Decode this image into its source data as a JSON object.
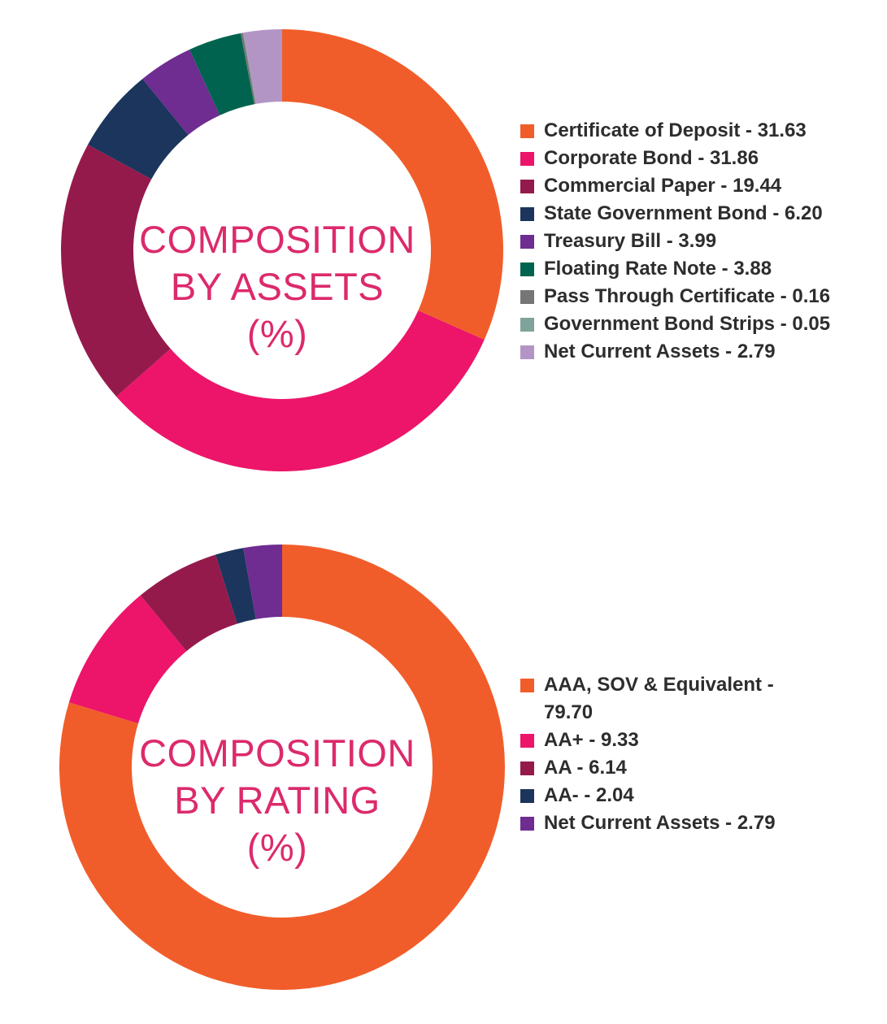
{
  "chart_data": [
    {
      "type": "pie",
      "title": "COMPOSITION BY ASSETS (%)",
      "title_lines": [
        "COMPOSITION",
        "BY ASSETS",
        "(%)"
      ],
      "legend_position": "right",
      "slices": [
        {
          "label": "Certificate of Deposit - 31.63",
          "name": "Certificate of Deposit",
          "value": 31.63,
          "color": "#f15d2a"
        },
        {
          "label": "Corporate Bond - 31.86",
          "name": "Corporate Bond",
          "value": 31.86,
          "color": "#ec1569"
        },
        {
          "label": "Commercial Paper - 19.44",
          "name": "Commercial Paper",
          "value": 19.44,
          "color": "#951a4c"
        },
        {
          "label": "State Government Bond - 6.20",
          "name": "State Government Bond",
          "value": 6.2,
          "color": "#1b355c"
        },
        {
          "label": "Treasury Bill - 3.99",
          "name": "Treasury Bill",
          "value": 3.99,
          "color": "#6f2c91"
        },
        {
          "label": "Floating Rate Note - 3.88",
          "name": "Floating Rate Note",
          "value": 3.88,
          "color": "#00634f"
        },
        {
          "label": "Pass Through Certificate - 0.16",
          "name": "Pass Through Certificate",
          "value": 0.16,
          "color": "#767676"
        },
        {
          "label": "Government Bond Strips - 0.05",
          "name": "Government Bond Strips",
          "value": 0.05,
          "color": "#7fa39a"
        },
        {
          "label": "Net Current Assets - 2.79",
          "name": "Net Current Assets",
          "value": 2.79,
          "color": "#b295c5"
        }
      ]
    },
    {
      "type": "pie",
      "title": "COMPOSITION BY RATING (%)",
      "title_lines": [
        "COMPOSITION",
        "BY RATING",
        "(%)"
      ],
      "legend_position": "right",
      "slices": [
        {
          "label": "AAA, SOV & Equivalent - 79.70",
          "name": "AAA, SOV & Equivalent",
          "value": 79.7,
          "color": "#f15d2a"
        },
        {
          "label": "AA+ - 9.33",
          "name": "AA+",
          "value": 9.33,
          "color": "#ec1569"
        },
        {
          "label": "AA - 6.14",
          "name": "AA",
          "value": 6.14,
          "color": "#951a4c"
        },
        {
          "label": "AA- - 2.04",
          "name": "AA-",
          "value": 2.04,
          "color": "#1b355c"
        },
        {
          "label": "Net Current Assets - 2.79",
          "name": "Net Current Assets",
          "value": 2.79,
          "color": "#6f2c91"
        }
      ]
    }
  ]
}
